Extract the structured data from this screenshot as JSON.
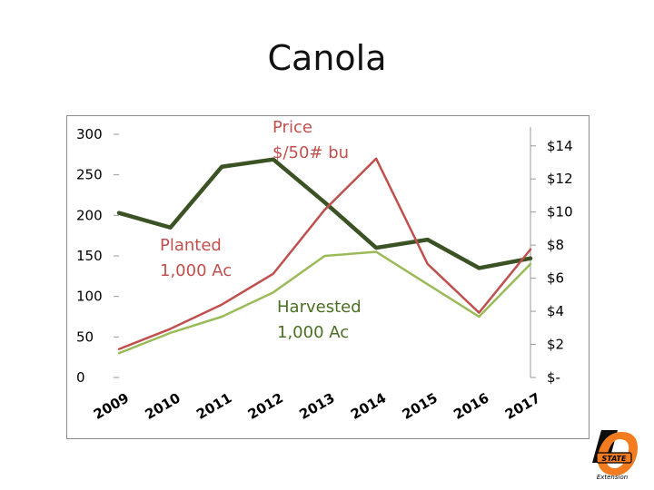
{
  "page": {
    "title": "Canola"
  },
  "chart_data": {
    "type": "line",
    "title": "",
    "categories": [
      "2009",
      "2010",
      "2011",
      "2012",
      "2013",
      "2014",
      "2015",
      "2016",
      "2017"
    ],
    "left_axis": {
      "ylim": [
        0,
        300
      ],
      "ticks": [
        "0",
        "50",
        "100",
        "150",
        "200",
        "250",
        "300"
      ]
    },
    "right_axis": {
      "ylim": [
        0,
        14.7
      ],
      "ticks": [
        "$-",
        "$2",
        "$4",
        "$6",
        "$8",
        "$10",
        "$12",
        "$14"
      ]
    },
    "grid": false,
    "legend": "none",
    "series": [
      {
        "name": "Price $/50# bu",
        "axis": "left",
        "color": "#f2b000",
        "values": [
          203,
          185,
          260,
          269,
          216,
          160,
          170,
          135,
          147
        ]
      },
      {
        "name": "Planted 1,000 Ac",
        "axis": "left",
        "color": "#c0504d",
        "values": [
          35,
          60,
          90,
          128,
          207,
          270,
          140,
          80,
          158
        ]
      },
      {
        "name": "Harvested 1,000 Ac",
        "axis": "left",
        "color": "#9bbb59",
        "values": [
          30,
          55,
          75,
          105,
          150,
          155,
          115,
          75,
          140
        ]
      }
    ],
    "series_line_colors": {
      "price": "#3a5224",
      "planted": "#c0504d",
      "harvested": "#9bbb59"
    },
    "annotations": [
      {
        "text_lines": [
          "Price",
          "$/50# bu"
        ],
        "color": "#c0504d"
      },
      {
        "text_lines": [
          "Planted",
          "1,000 Ac"
        ],
        "color": "#c0504d"
      },
      {
        "text_lines": [
          "Harvested",
          "1,000 Ac"
        ],
        "color": "#4a7023"
      }
    ]
  },
  "logo": {
    "name": "osu-extension-logo",
    "text": "Extension",
    "wordmark": "STATE",
    "colors": {
      "orange": "#f47c20",
      "black": "#000000"
    }
  }
}
